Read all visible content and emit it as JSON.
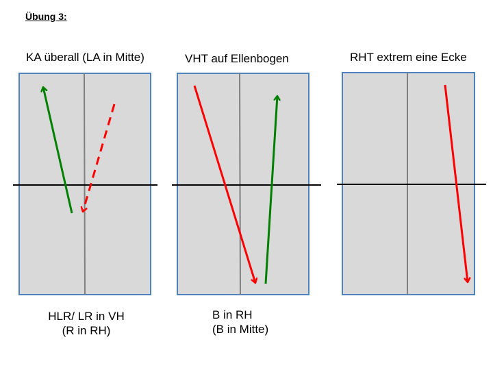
{
  "heading": "Übung 3:",
  "panels": [
    {
      "caption": "KA überall (LA in Mitte)",
      "note_lines": [
        "HLR/ LR in VH",
        "(R in RH)"
      ]
    },
    {
      "caption": "VHT auf Ellenbogen",
      "note_lines": [
        "B in RH",
        "(B in Mitte)"
      ]
    },
    {
      "caption": "RHT extrem eine Ecke",
      "note_lines": []
    }
  ],
  "colors": {
    "court_fill": "#d9d9d9",
    "court_border": "#4f81bd",
    "center_line": "#7f7f7f",
    "net_line": "#000000",
    "arrow_red": "#ff0000",
    "arrow_green": "#008000"
  },
  "arrows": [
    {
      "panel": 1,
      "color": "green",
      "style": "solid"
    },
    {
      "panel": 1,
      "color": "red",
      "style": "dashed"
    },
    {
      "panel": 2,
      "color": "red",
      "style": "solid"
    },
    {
      "panel": 2,
      "color": "green",
      "style": "solid"
    },
    {
      "panel": 3,
      "color": "red",
      "style": "solid"
    }
  ]
}
